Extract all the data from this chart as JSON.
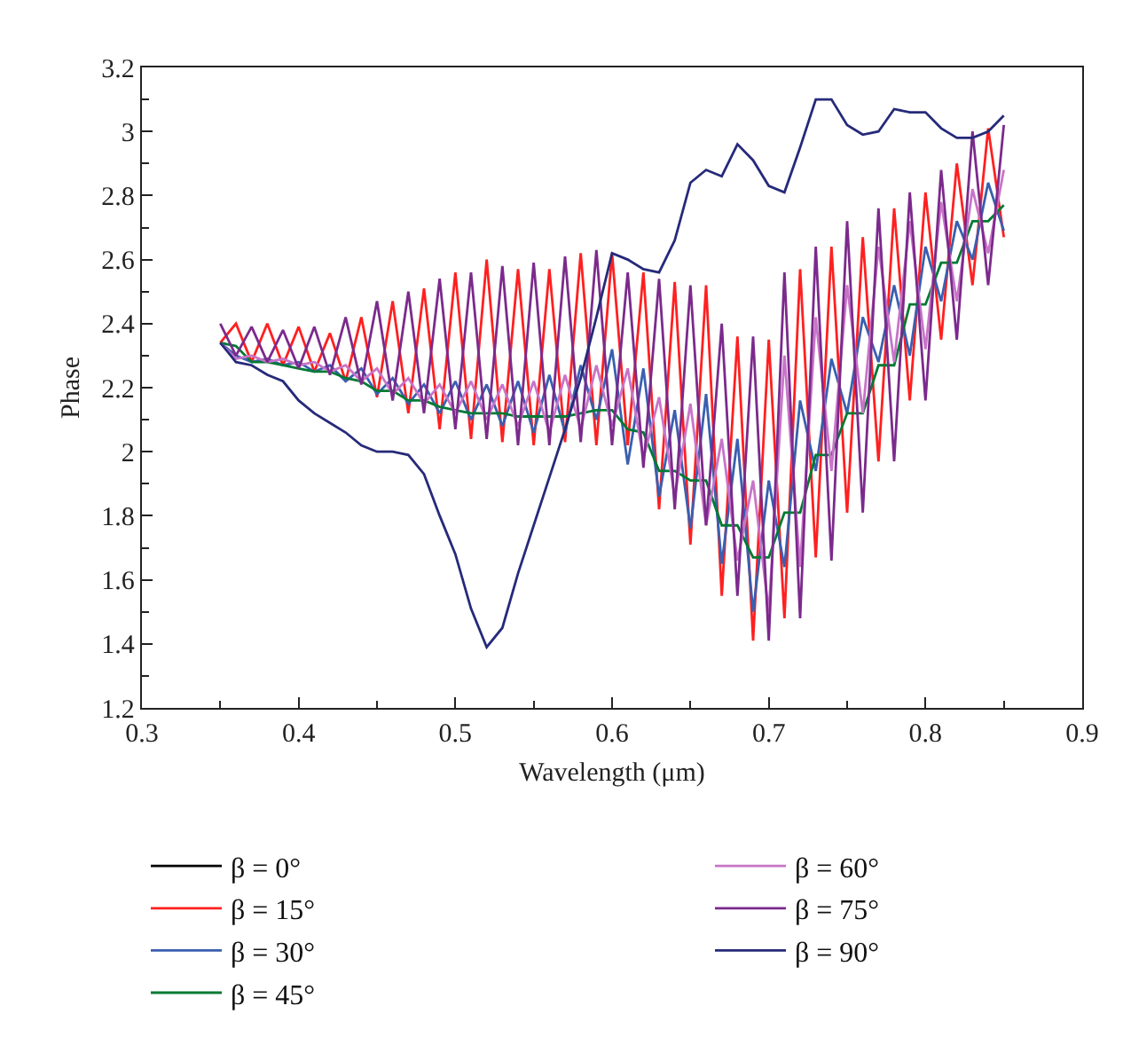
{
  "chart_data": {
    "type": "line",
    "xlabel": "Wavelength (μm)",
    "ylabel": "Phase",
    "x": [
      0.35,
      0.36,
      0.37,
      0.38,
      0.39,
      0.4,
      0.41,
      0.42,
      0.43,
      0.44,
      0.45,
      0.46,
      0.47,
      0.48,
      0.49,
      0.5,
      0.51,
      0.52,
      0.53,
      0.54,
      0.55,
      0.56,
      0.57,
      0.58,
      0.59,
      0.6,
      0.61,
      0.62,
      0.63,
      0.64,
      0.65,
      0.66,
      0.67,
      0.68,
      0.69,
      0.7,
      0.71,
      0.72,
      0.73,
      0.74,
      0.75,
      0.76,
      0.77,
      0.78,
      0.79,
      0.8,
      0.81,
      0.82,
      0.83,
      0.84,
      0.85
    ],
    "xlim": [
      0.3,
      0.9
    ],
    "xticks": [
      0.3,
      0.4,
      0.5,
      0.6,
      0.7,
      0.8,
      0.9
    ],
    "ylim": [
      1.2,
      3.2
    ],
    "yticks": [
      1.2,
      1.4,
      1.6,
      1.8,
      2,
      2.2,
      2.4,
      2.6,
      2.8,
      3,
      3.2
    ],
    "legend": "bottom",
    "marker": "none",
    "line_style": "solid",
    "series": [
      {
        "name": "β = 0°",
        "color": "#000000",
        "values": [
          null,
          null,
          null,
          null,
          null,
          null,
          null,
          null,
          null,
          null,
          null,
          null,
          null,
          null,
          null,
          null,
          null,
          null,
          null,
          null,
          null,
          null,
          null,
          null,
          null,
          null,
          null,
          null,
          null,
          null,
          null,
          null,
          null,
          null,
          null,
          null,
          null,
          null,
          null,
          null,
          null,
          null,
          null,
          null,
          null,
          null,
          null,
          null,
          null,
          null,
          null
        ]
      },
      {
        "name": "β = 15°",
        "color": "#ff2020",
        "values": [
          2.34,
          2.4,
          2.28,
          2.4,
          2.27,
          2.39,
          2.25,
          2.37,
          2.22,
          2.42,
          2.17,
          2.47,
          2.12,
          2.51,
          2.07,
          2.56,
          2.04,
          2.6,
          2.03,
          2.57,
          2.02,
          2.57,
          2.03,
          2.62,
          2.02,
          2.62,
          2.02,
          2.56,
          1.82,
          2.53,
          1.71,
          2.52,
          1.55,
          2.36,
          1.41,
          2.35,
          1.48,
          2.57,
          1.67,
          2.64,
          1.81,
          2.67,
          1.97,
          2.76,
          2.16,
          2.81,
          2.35,
          2.9,
          2.52,
          3.01,
          2.67
        ]
      },
      {
        "name": "β = 30°",
        "color": "#3a5fb0",
        "values": [
          2.34,
          2.3,
          2.28,
          2.29,
          2.27,
          2.28,
          2.25,
          2.27,
          2.22,
          2.26,
          2.18,
          2.23,
          2.15,
          2.21,
          2.12,
          2.22,
          2.1,
          2.21,
          2.08,
          2.22,
          2.06,
          2.24,
          2.06,
          2.27,
          2.1,
          2.32,
          1.96,
          2.26,
          1.86,
          2.13,
          1.76,
          2.18,
          1.65,
          2.04,
          1.5,
          1.91,
          1.64,
          2.16,
          1.94,
          2.29,
          2.12,
          2.42,
          2.28,
          2.52,
          2.3,
          2.64,
          2.47,
          2.72,
          2.6,
          2.84,
          2.69
        ]
      },
      {
        "name": "β = 45°",
        "color": "#007a33",
        "values": [
          2.34,
          2.33,
          2.28,
          2.28,
          2.27,
          2.26,
          2.25,
          2.25,
          2.23,
          2.22,
          2.19,
          2.19,
          2.16,
          2.16,
          2.14,
          2.13,
          2.12,
          2.12,
          2.12,
          2.11,
          2.11,
          2.11,
          2.11,
          2.12,
          2.13,
          2.13,
          2.07,
          2.06,
          1.94,
          1.94,
          1.91,
          1.91,
          1.77,
          1.77,
          1.67,
          1.67,
          1.81,
          1.81,
          1.99,
          1.99,
          2.12,
          2.12,
          2.27,
          2.27,
          2.46,
          2.46,
          2.59,
          2.59,
          2.72,
          2.72,
          2.77
        ]
      },
      {
        "name": "β = 60°",
        "color": "#c874c8",
        "values": [
          2.34,
          2.29,
          2.3,
          2.28,
          2.29,
          2.27,
          2.28,
          2.25,
          2.27,
          2.22,
          2.26,
          2.18,
          2.23,
          2.15,
          2.21,
          2.12,
          2.22,
          2.1,
          2.21,
          2.08,
          2.22,
          2.06,
          2.24,
          2.07,
          2.27,
          2.08,
          2.26,
          1.98,
          2.17,
          1.86,
          2.15,
          1.77,
          2.04,
          1.66,
          1.91,
          1.5,
          2.3,
          1.64,
          2.42,
          1.94,
          2.52,
          2.12,
          2.64,
          2.28,
          2.72,
          2.32,
          2.78,
          2.47,
          2.82,
          2.62,
          2.88
        ]
      },
      {
        "name": "β = 75°",
        "color": "#7b2a8c",
        "values": [
          2.4,
          2.3,
          2.39,
          2.28,
          2.38,
          2.26,
          2.39,
          2.24,
          2.42,
          2.21,
          2.47,
          2.16,
          2.5,
          2.12,
          2.54,
          2.07,
          2.56,
          2.04,
          2.58,
          2.02,
          2.59,
          2.02,
          2.61,
          2.03,
          2.63,
          2.02,
          2.56,
          1.95,
          2.54,
          1.82,
          2.52,
          1.77,
          2.4,
          1.55,
          2.36,
          1.41,
          2.56,
          1.48,
          2.64,
          1.66,
          2.72,
          1.81,
          2.76,
          1.97,
          2.81,
          2.16,
          2.88,
          2.35,
          3.0,
          2.52,
          3.02
        ]
      },
      {
        "name": "β = 90°",
        "color": "#262a7a",
        "values": [
          2.34,
          2.28,
          2.27,
          2.24,
          2.22,
          2.16,
          2.12,
          2.09,
          2.06,
          2.02,
          2.0,
          2.0,
          1.99,
          1.93,
          1.8,
          1.68,
          1.51,
          1.39,
          1.45,
          1.62,
          1.77,
          1.92,
          2.07,
          2.23,
          2.42,
          2.62,
          2.6,
          2.57,
          2.56,
          2.66,
          2.84,
          2.88,
          2.86,
          2.96,
          2.91,
          2.83,
          2.81,
          2.95,
          3.1,
          3.1,
          3.02,
          2.99,
          3.0,
          3.07,
          3.06,
          3.06,
          3.01,
          2.98,
          2.98,
          3.0,
          3.05
        ]
      }
    ]
  }
}
